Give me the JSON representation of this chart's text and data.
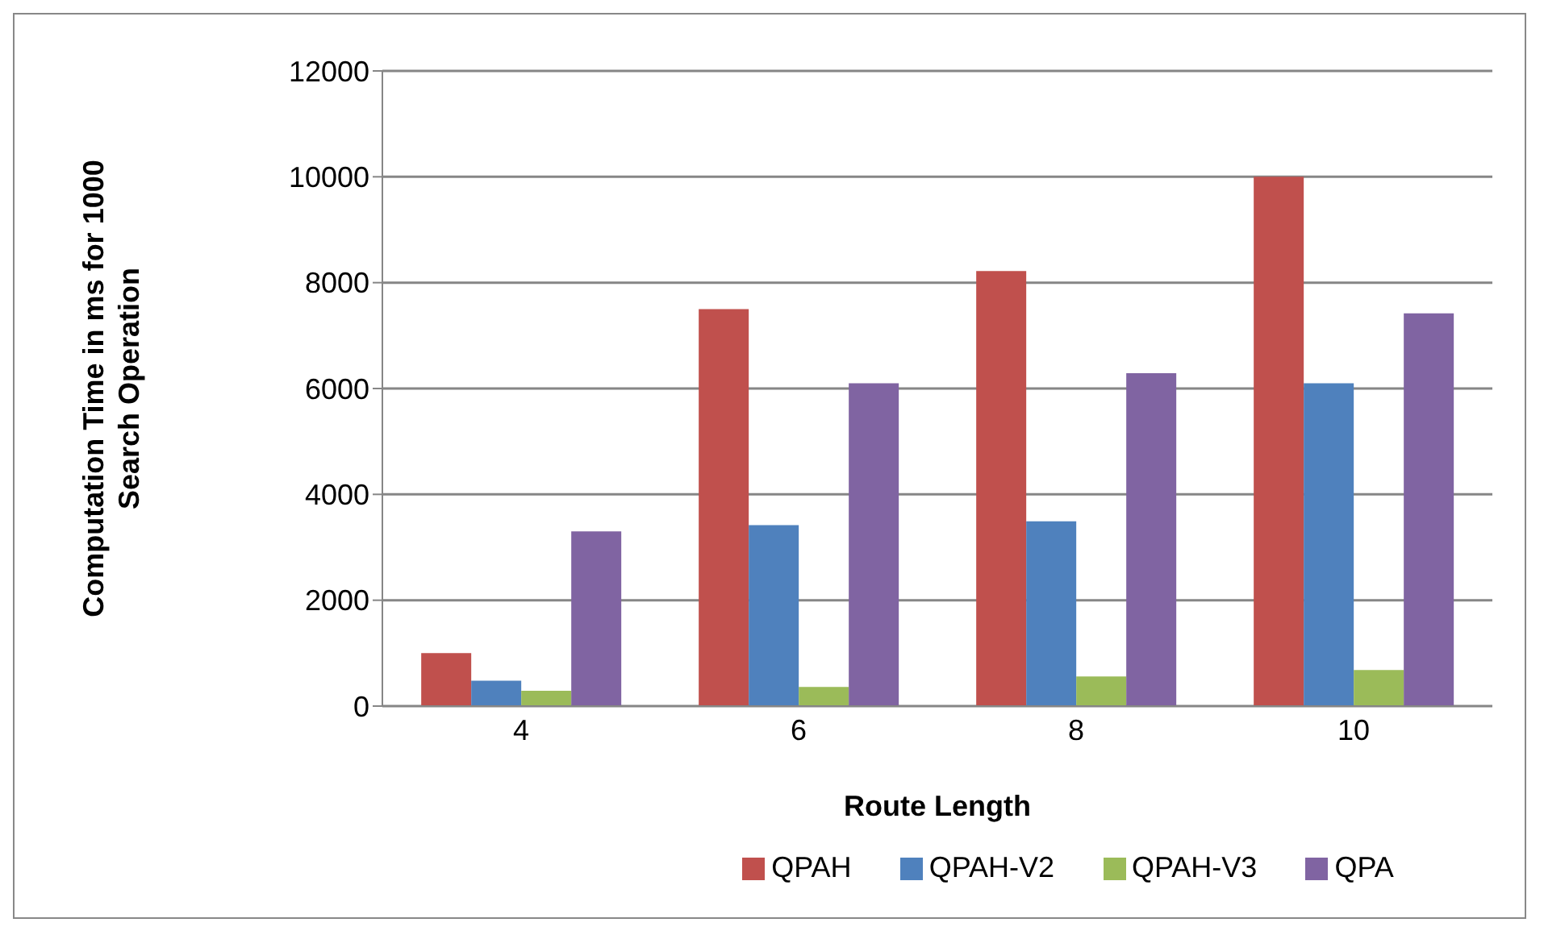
{
  "chart_data": {
    "type": "bar",
    "xlabel": "Route Length",
    "ylabel": "Computation Time in ms for 1000 Search Operation",
    "categories": [
      "4",
      "6",
      "8",
      "10"
    ],
    "series": [
      {
        "name": "QPAH",
        "color": "#c0504d",
        "values": [
          1000,
          7500,
          8220,
          10000
        ]
      },
      {
        "name": "QPAH-V2",
        "color": "#4f81bd",
        "values": [
          480,
          3420,
          3490,
          6100
        ]
      },
      {
        "name": "QPAH-V3",
        "color": "#9bbb59",
        "values": [
          290,
          360,
          560,
          680
        ]
      },
      {
        "name": "QPA",
        "color": "#8064a2",
        "values": [
          3300,
          6100,
          6290,
          7420
        ]
      }
    ],
    "ylim": [
      0,
      12000
    ],
    "yticks": [
      0,
      2000,
      4000,
      6000,
      8000,
      10000,
      12000
    ],
    "grid": "y",
    "legend": "bottom"
  }
}
